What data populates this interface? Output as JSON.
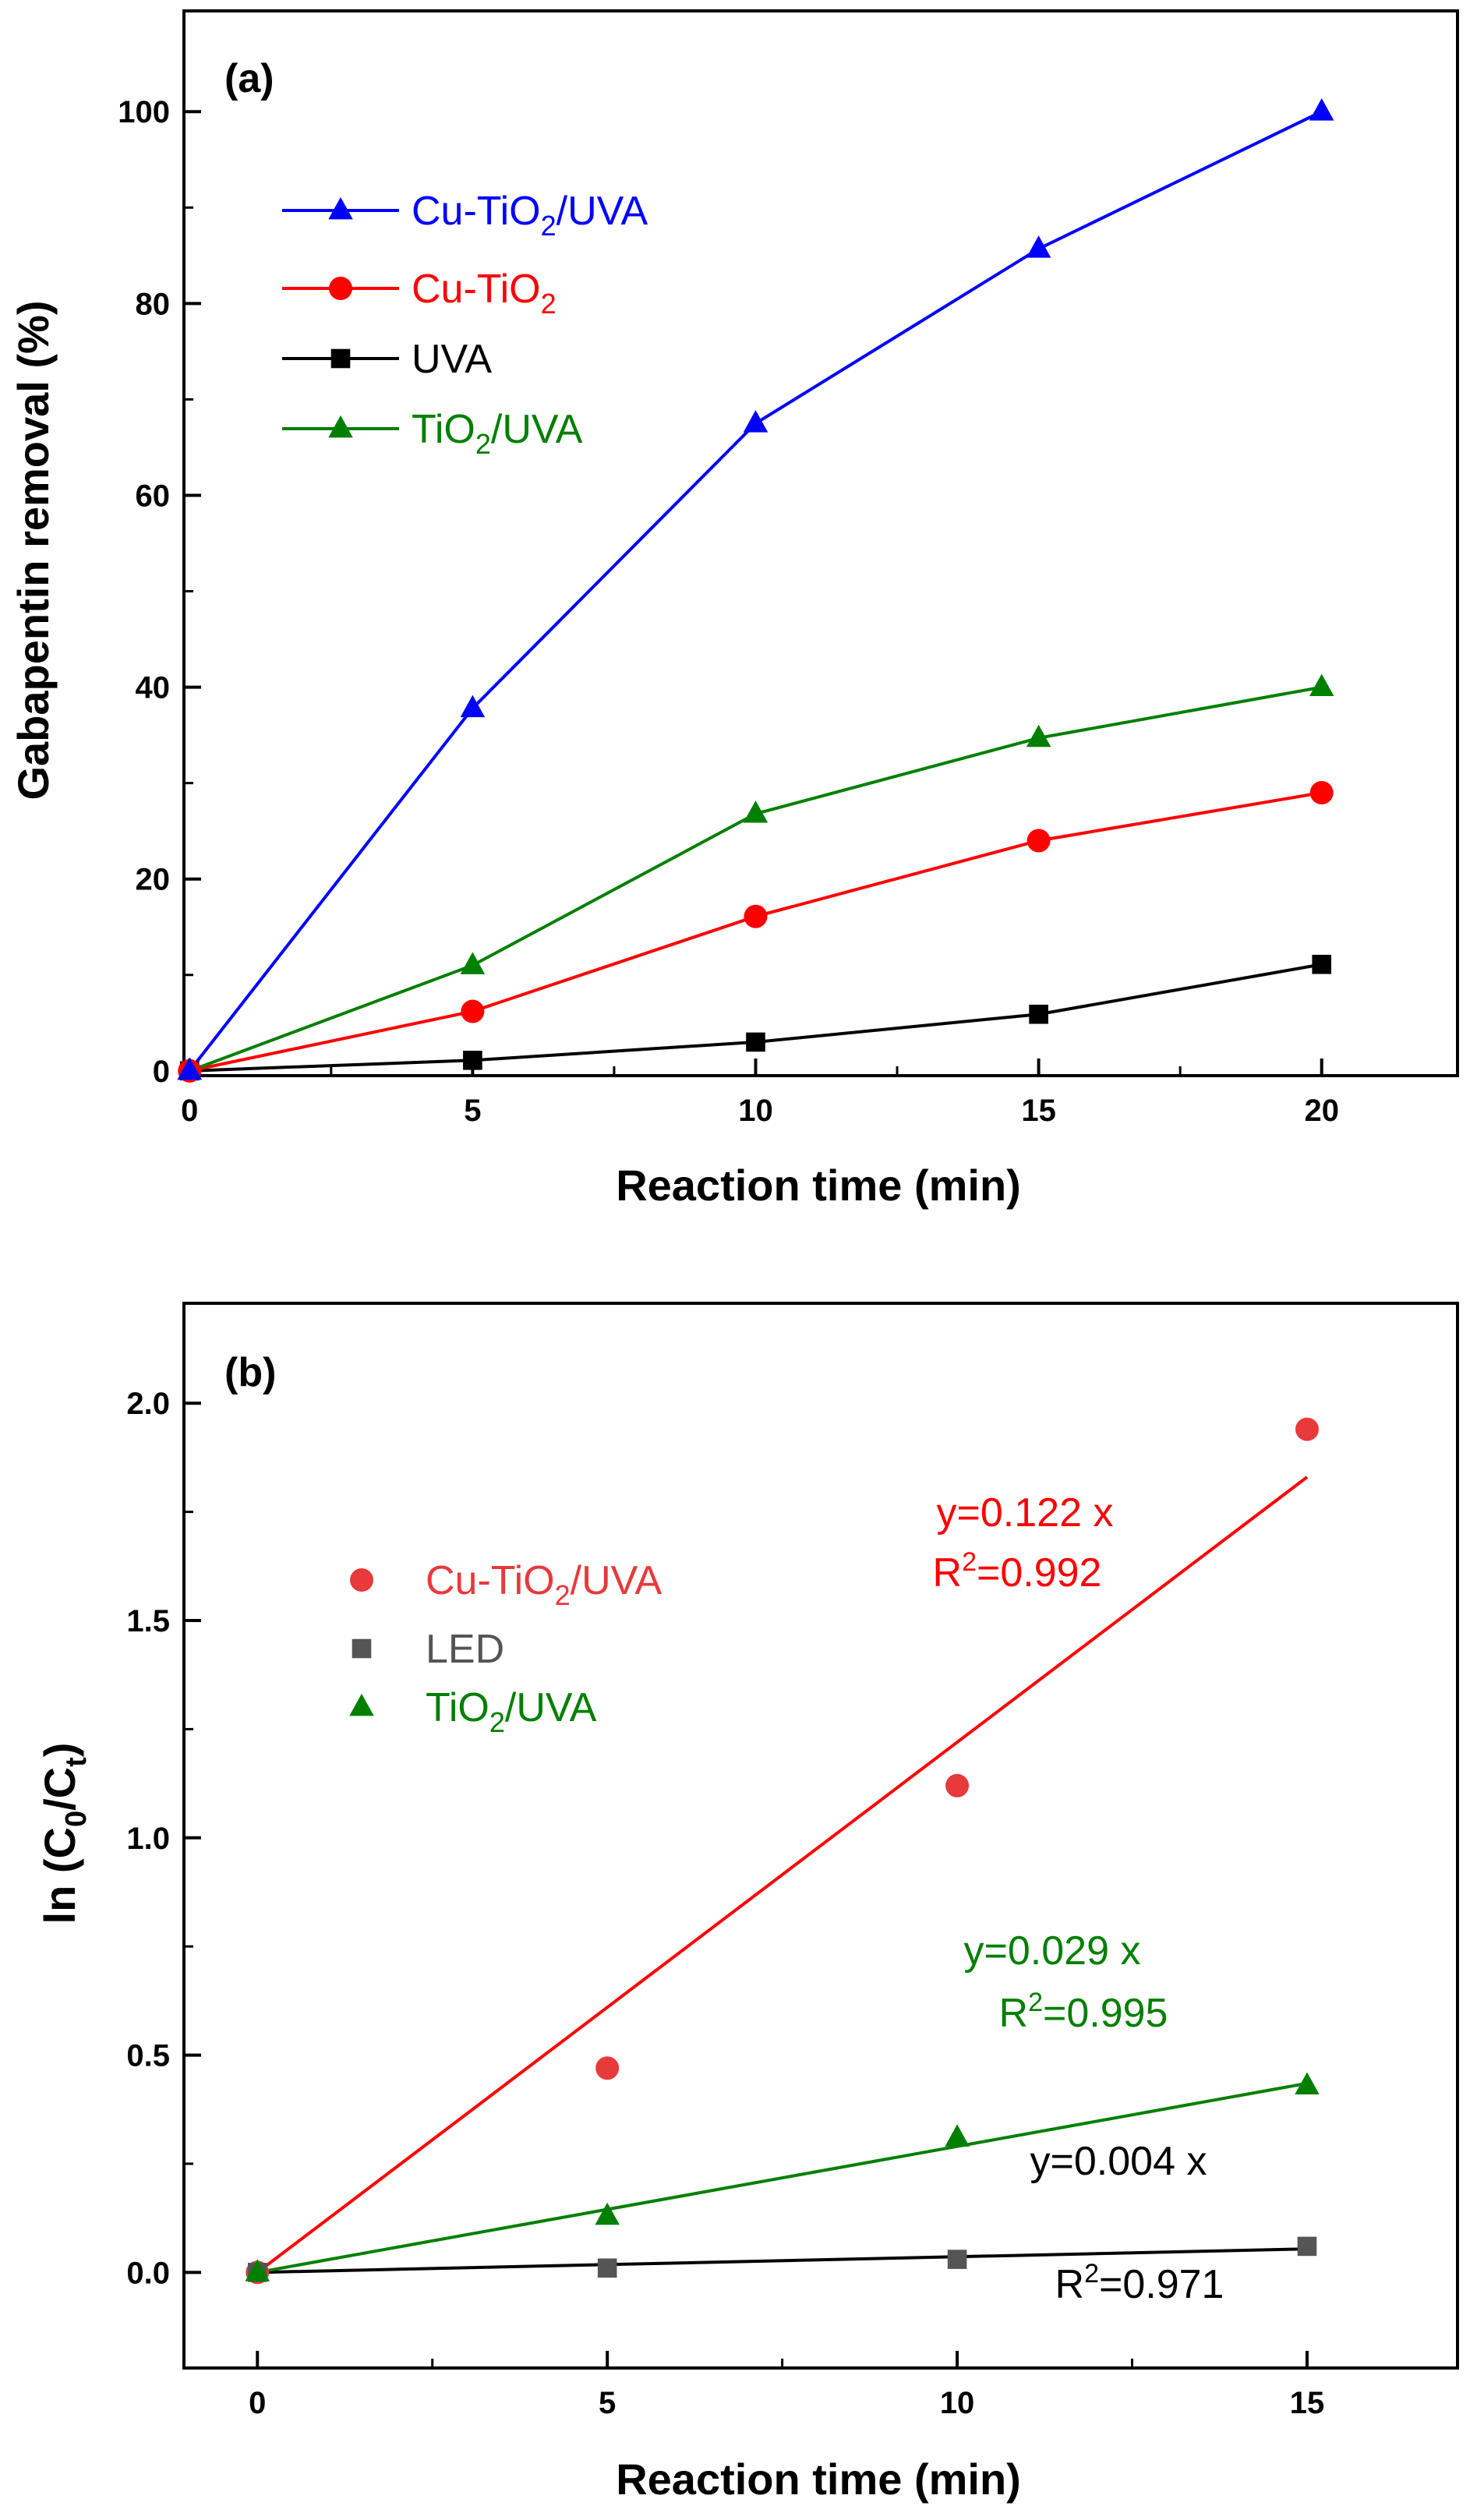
{
  "chart_data": [
    {
      "panel": "(a)",
      "type": "line",
      "xlabel": "Reaction time (min)",
      "ylabel": "Gabapentin removal (%)",
      "xlim": [
        -0.1,
        22.4
      ],
      "ylim": [
        -0.5,
        110.5
      ],
      "x_ticks": [
        0,
        5,
        10,
        15,
        20
      ],
      "x_tick_labels": [
        "0",
        "5",
        "10",
        "15",
        "20"
      ],
      "y_ticks": [
        0,
        20,
        40,
        60,
        80,
        100
      ],
      "y_tick_labels": [
        "0",
        "20",
        "40",
        "60",
        "80",
        "100"
      ],
      "x_minor": [
        2.5,
        7.5,
        12.5,
        17.5
      ],
      "y_minor": [
        10,
        30,
        50,
        70,
        90
      ],
      "legend_position": "upper-left",
      "x": [
        0,
        5,
        10,
        15,
        20
      ],
      "series": [
        {
          "key": "cu-tio2-uva",
          "label_main": "Cu-TiO",
          "label_sub": "2",
          "label_tail": "/UVA",
          "color": "#0000ff",
          "marker": "triangle",
          "values": [
            0,
            37.8,
            67.5,
            85.7,
            100
          ]
        },
        {
          "key": "cu-tio2",
          "label_main": "Cu-TiO",
          "label_sub": "2",
          "label_tail": "",
          "color": "#ff0000",
          "marker": "circle",
          "values": [
            0,
            6.2,
            16.1,
            24.0,
            29.0
          ]
        },
        {
          "key": "uva",
          "label_main": "UVA",
          "label_sub": "",
          "label_tail": "",
          "color": "#000000",
          "marker": "square",
          "values": [
            0,
            1.1,
            3.0,
            5.9,
            11.1
          ]
        },
        {
          "key": "tio2-uva",
          "label_main": "TiO",
          "label_sub": "2",
          "label_tail": "/UVA",
          "color": "#007f00",
          "marker": "triangle",
          "values": [
            0,
            11.0,
            26.8,
            34.7,
            40.0
          ]
        }
      ]
    },
    {
      "panel": "(b)",
      "type": "scatter",
      "xlabel": "Reaction time (min)",
      "ylabel_main": "ln (C",
      "ylabel_sub1": "0",
      "ylabel_mid": "/C",
      "ylabel_sub2": "t",
      "ylabel_tail": ")",
      "xlim": [
        -1.05,
        17.15
      ],
      "ylim": [
        -0.22,
        2.23
      ],
      "x_ticks": [
        0,
        5,
        10,
        15
      ],
      "x_tick_labels": [
        "0",
        "5",
        "10",
        "15"
      ],
      "y_ticks": [
        0.0,
        0.5,
        1.0,
        1.5,
        2.0
      ],
      "y_tick_labels": [
        "0.0",
        "0.5",
        "1.0",
        "1.5",
        "2.0"
      ],
      "x_minor": [
        2.5,
        7.5,
        12.5
      ],
      "y_minor": [
        0.25,
        0.75,
        1.25,
        1.75
      ],
      "legend_position": "upper-left",
      "x": [
        0,
        5,
        10,
        15
      ],
      "series": [
        {
          "key": "cu-tio2-uva",
          "label_main": "Cu-TiO",
          "label_sub": "2",
          "label_tail": "/UVA",
          "color": "#e8393b",
          "marker": "circle",
          "values": [
            0,
            0.47,
            1.12,
            1.94
          ],
          "fit_slope": 0.122,
          "fit_color": "#ff0000"
        },
        {
          "key": "led",
          "label_main": "LED",
          "label_sub": "",
          "label_tail": "",
          "color": "#555555",
          "marker": "square",
          "values": [
            0,
            0.01,
            0.03,
            0.06
          ],
          "fit_slope": 0.0036,
          "fit_color": "#000000"
        },
        {
          "key": "tio2-uva",
          "label_main": "TiO",
          "label_sub": "2",
          "label_tail": "/UVA",
          "color": "#007f00",
          "marker": "triangle",
          "values": [
            0,
            0.13,
            0.31,
            0.43
          ],
          "fit_slope": 0.029,
          "fit_color": "#007f00"
        }
      ],
      "annotations": [
        {
          "key": "eq-cu",
          "color": "#ff0000",
          "eq": "y=0.122 x",
          "r2_main": "R",
          "r2_sup": "2",
          "r2_tail": "=0.992"
        },
        {
          "key": "eq-tio2",
          "color": "#007f00",
          "eq": "y=0.029 x",
          "r2_main": "R",
          "r2_sup": "2",
          "r2_tail": "=0.995"
        },
        {
          "key": "eq-led",
          "color": "#000000",
          "eq": "y=0.004 x",
          "r2_main": "R",
          "r2_sup": "2",
          "r2_tail": "=0.971"
        }
      ]
    }
  ]
}
